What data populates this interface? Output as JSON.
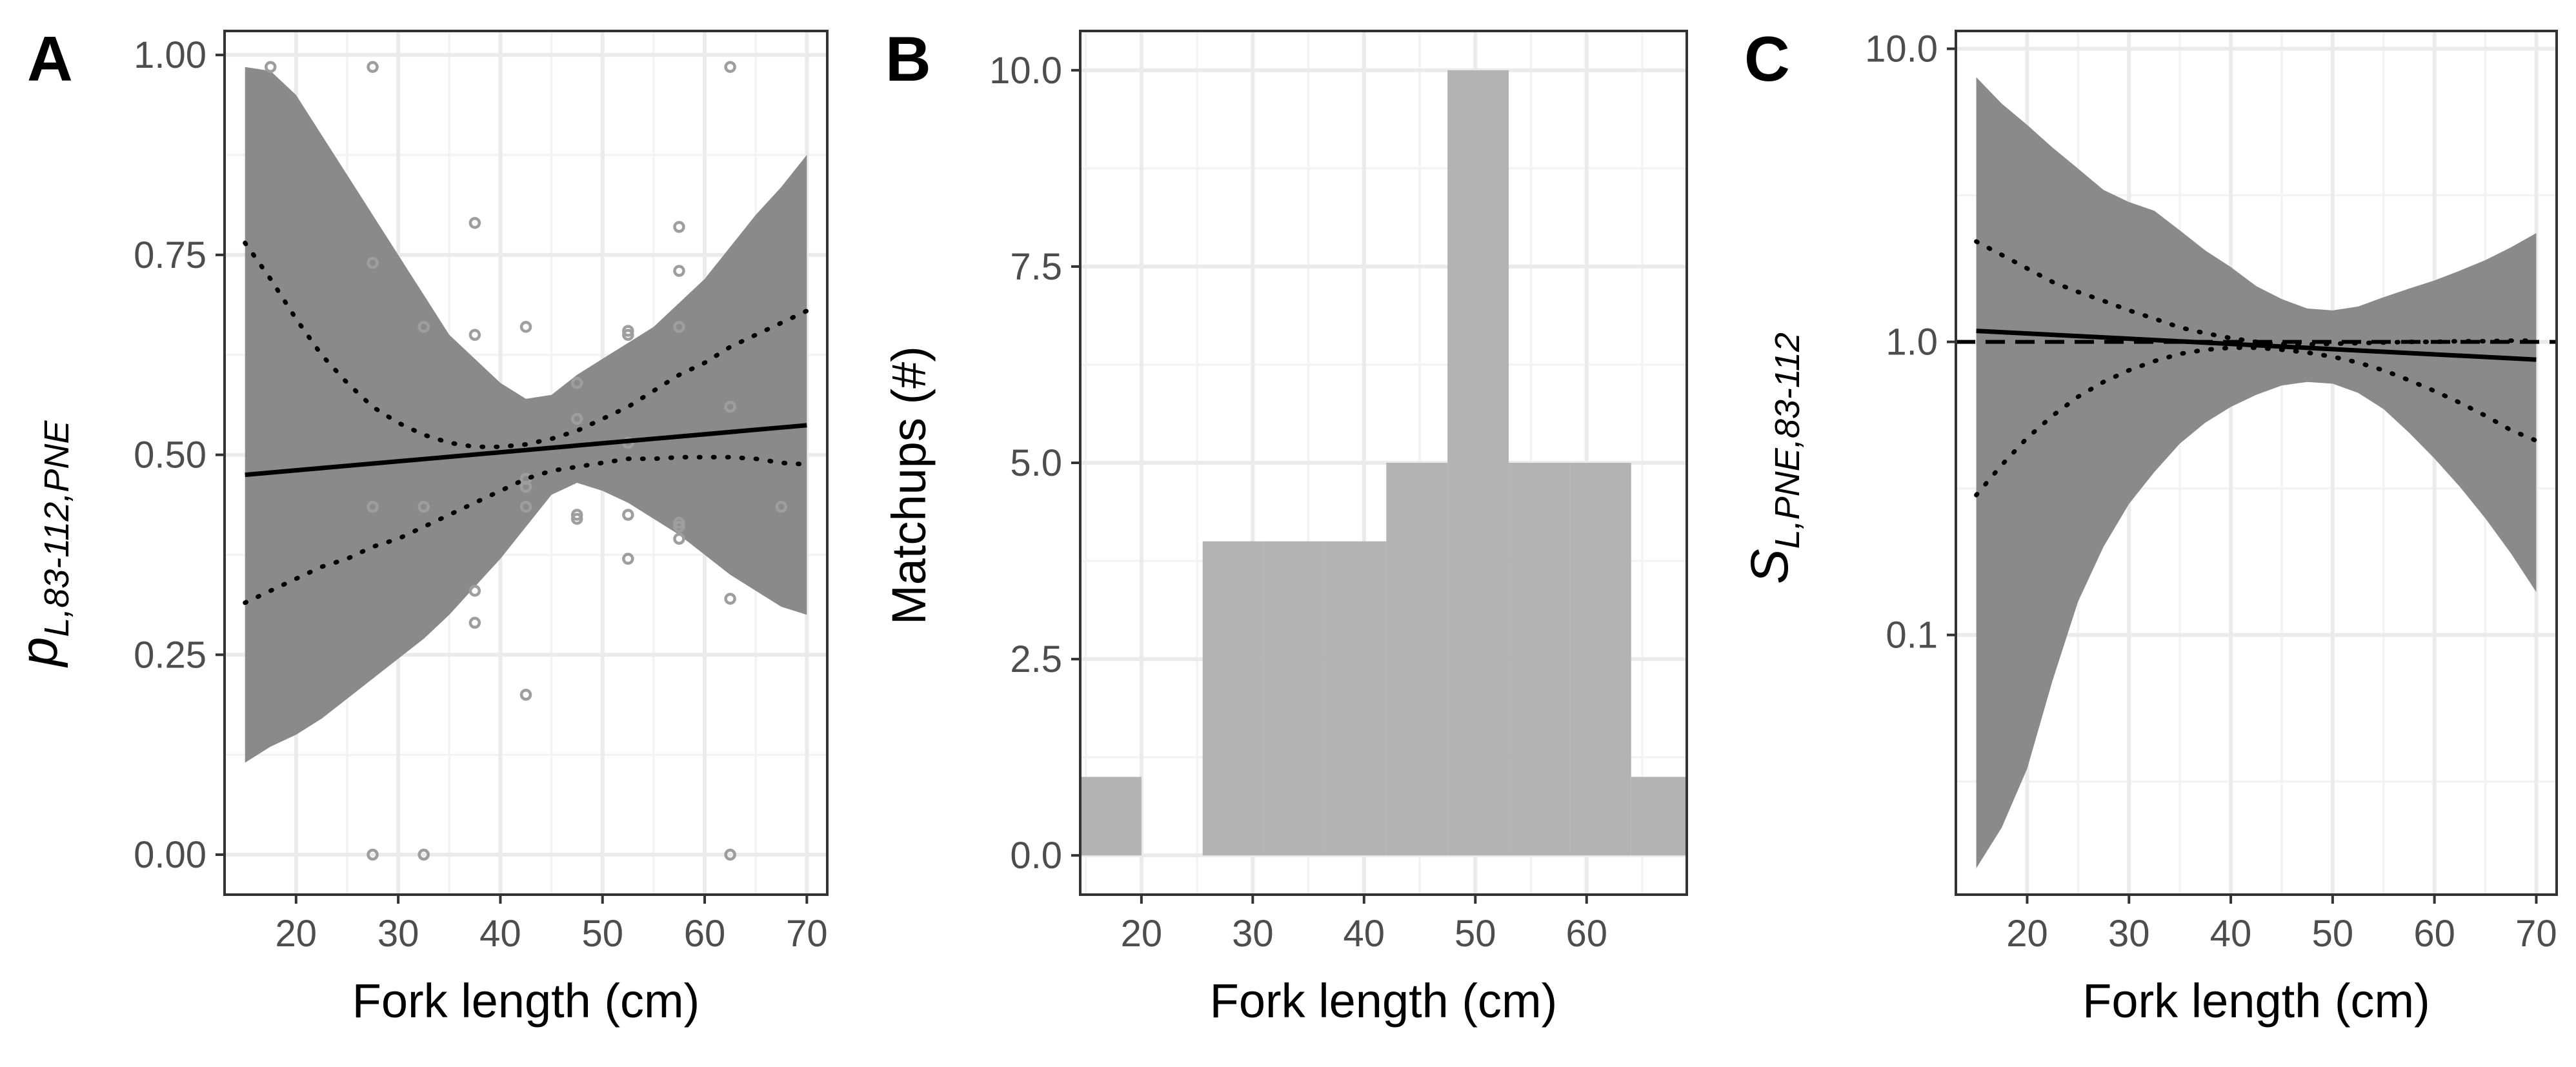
{
  "chart_data": [
    {
      "panel": "A",
      "type": "line",
      "xlabel": "Fork length (cm)",
      "ylabel": "p",
      "ylabel_sub": "L,83-112,PNE",
      "xlim": [
        13,
        72
      ],
      "ylim": [
        -0.05,
        1.03
      ],
      "x_ticks": [
        20,
        30,
        40,
        50,
        60,
        70
      ],
      "x_tick_labels": [
        "20",
        "30",
        "40",
        "50",
        "60",
        "70"
      ],
      "y_ticks": [
        0,
        0.25,
        0.5,
        0.75,
        1.0
      ],
      "y_tick_labels": [
        "0.00",
        "0.25",
        "0.50",
        "0.75",
        "1.00"
      ],
      "grid": true,
      "fit_x": [
        15,
        70
      ],
      "fit_y": [
        0.475,
        0.537
      ],
      "ci_x": [
        15,
        17.5,
        20,
        22.5,
        25,
        27.5,
        30,
        32.5,
        35,
        37.5,
        40,
        42.5,
        45,
        47.5,
        50,
        52.5,
        55,
        57.5,
        60,
        62.5,
        65,
        67.5,
        70
      ],
      "ci_upper": [
        0.985,
        0.98,
        0.95,
        0.9,
        0.85,
        0.8,
        0.75,
        0.7,
        0.65,
        0.62,
        0.59,
        0.57,
        0.575,
        0.6,
        0.62,
        0.64,
        0.66,
        0.69,
        0.72,
        0.76,
        0.8,
        0.835,
        0.875
      ],
      "ci_lower": [
        0.115,
        0.135,
        0.15,
        0.17,
        0.195,
        0.22,
        0.245,
        0.27,
        0.3,
        0.335,
        0.37,
        0.41,
        0.45,
        0.465,
        0.455,
        0.44,
        0.42,
        0.4,
        0.375,
        0.35,
        0.33,
        0.31,
        0.3
      ],
      "dotted_upper": [
        0.765,
        0.72,
        0.67,
        0.625,
        0.59,
        0.56,
        0.54,
        0.525,
        0.515,
        0.51,
        0.51,
        0.513,
        0.52,
        0.53,
        0.545,
        0.56,
        0.58,
        0.6,
        0.615,
        0.635,
        0.65,
        0.665,
        0.68
      ],
      "dotted_lower": [
        0.315,
        0.33,
        0.345,
        0.36,
        0.37,
        0.385,
        0.395,
        0.41,
        0.425,
        0.44,
        0.455,
        0.47,
        0.48,
        0.485,
        0.49,
        0.495,
        0.495,
        0.497,
        0.497,
        0.497,
        0.495,
        0.49,
        0.488
      ],
      "points_x": [
        17.5,
        27.5,
        27.5,
        27.5,
        27.5,
        32.5,
        32.5,
        32.5,
        37.5,
        37.5,
        37.5,
        37.5,
        42.5,
        42.5,
        42.5,
        42.5,
        42.5,
        47.5,
        47.5,
        47.5,
        47.5,
        52.5,
        52.5,
        52.5,
        52.5,
        52.5,
        57.5,
        57.5,
        57.5,
        57.5,
        57.5,
        57.5,
        62.5,
        62.5,
        62.5,
        62.5,
        67.5
      ],
      "points_y": [
        0.985,
        0.985,
        0.74,
        0.435,
        0.0,
        0.66,
        0.435,
        0.0,
        0.79,
        0.65,
        0.33,
        0.29,
        0.66,
        0.47,
        0.46,
        0.435,
        0.2,
        0.59,
        0.545,
        0.425,
        0.42,
        0.655,
        0.65,
        0.515,
        0.425,
        0.37,
        0.785,
        0.73,
        0.66,
        0.415,
        0.41,
        0.395,
        0.985,
        0.56,
        0.32,
        0.0,
        0.435
      ]
    },
    {
      "panel": "B",
      "type": "bar",
      "xlabel": "Fork length (cm)",
      "ylabel": "Matchups (#)",
      "xlim": [
        14.5,
        69
      ],
      "ylim": [
        -0.5,
        10.5
      ],
      "x_ticks": [
        20,
        30,
        40,
        50,
        60
      ],
      "x_tick_labels": [
        "20",
        "30",
        "40",
        "50",
        "60"
      ],
      "y_ticks": [
        0,
        2.5,
        5,
        7.5,
        10
      ],
      "y_tick_labels": [
        "0.0",
        "2.5",
        "5.0",
        "7.5",
        "10.0"
      ],
      "grid": true,
      "bin_edges": [
        14.5,
        20,
        25.5,
        31,
        36.5,
        42,
        47.5,
        53,
        58.5,
        64,
        69.5
      ],
      "values": [
        1,
        0,
        4,
        4,
        4,
        5,
        10,
        5,
        5,
        1
      ]
    },
    {
      "panel": "C",
      "type": "line",
      "xlabel": "Fork length (cm)",
      "ylabel": "S",
      "ylabel_sub": "L,PNE,83-112",
      "y_scale": "log",
      "xlim": [
        13,
        72
      ],
      "ylim": [
        0.013,
        11.5
      ],
      "x_ticks": [
        20,
        30,
        40,
        50,
        60,
        70
      ],
      "x_tick_labels": [
        "20",
        "30",
        "40",
        "50",
        "60",
        "70"
      ],
      "y_ticks": [
        0.1,
        1.0,
        10.0
      ],
      "y_tick_labels": [
        "0.1",
        "1.0",
        "10.0"
      ],
      "grid": true,
      "reference_y": 1.0,
      "fit_x": [
        15,
        70
      ],
      "fit_y": [
        1.09,
        0.87
      ],
      "ci_x": [
        15,
        17.5,
        20,
        22.5,
        25,
        27.5,
        30,
        32.5,
        35,
        37.5,
        40,
        42.5,
        45,
        47.5,
        50,
        52.5,
        55,
        57.5,
        60,
        62.5,
        65,
        67.5,
        70
      ],
      "ci_upper": [
        8.0,
        6.5,
        5.5,
        4.6,
        3.9,
        3.3,
        3.0,
        2.8,
        2.4,
        2.05,
        1.8,
        1.55,
        1.4,
        1.3,
        1.28,
        1.32,
        1.42,
        1.52,
        1.62,
        1.75,
        1.9,
        2.1,
        2.35
      ],
      "ci_lower": [
        0.016,
        0.022,
        0.035,
        0.07,
        0.13,
        0.2,
        0.28,
        0.36,
        0.45,
        0.53,
        0.6,
        0.66,
        0.71,
        0.73,
        0.72,
        0.67,
        0.59,
        0.49,
        0.4,
        0.32,
        0.25,
        0.19,
        0.14
      ],
      "dotted_upper": [
        2.2,
        1.98,
        1.78,
        1.6,
        1.48,
        1.38,
        1.28,
        1.2,
        1.12,
        1.07,
        1.03,
        1.0,
        0.985,
        0.98,
        0.985,
        0.99,
        0.995,
        1.0,
        1.0,
        1.005,
        1.005,
        1.01,
        1.01
      ],
      "dotted_lower": [
        0.3,
        0.38,
        0.47,
        0.56,
        0.65,
        0.73,
        0.8,
        0.86,
        0.91,
        0.94,
        0.955,
        0.955,
        0.94,
        0.92,
        0.89,
        0.85,
        0.8,
        0.74,
        0.68,
        0.62,
        0.56,
        0.5,
        0.46
      ]
    }
  ],
  "panels": {
    "a": {
      "label": "A"
    },
    "b": {
      "label": "B"
    },
    "c": {
      "label": "C"
    }
  },
  "colors": {
    "ribbon": "#8a8a8a",
    "bars": "#b3b3b3",
    "points": "#9e9e9e",
    "line": "#000000"
  }
}
